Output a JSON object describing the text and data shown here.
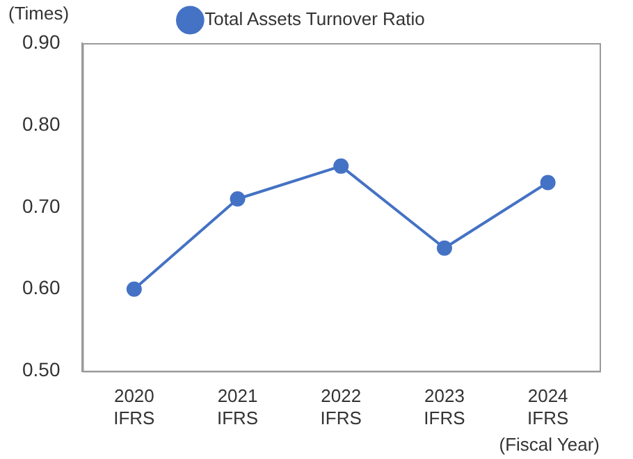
{
  "chart_data": {
    "type": "line",
    "ylabel": "(Times)",
    "xlabel": "(Fiscal Year)",
    "categories": [
      "2020\nIFRS",
      "2021\nIFRS",
      "2022\nIFRS",
      "2023\nIFRS",
      "2024\nIFRS"
    ],
    "series": [
      {
        "name": "Total Assets Turnover Ratio",
        "color": "#4472c4",
        "values": [
          0.6,
          0.71,
          0.75,
          0.65,
          0.73
        ]
      }
    ],
    "ylim": [
      0.5,
      0.9
    ],
    "yticks": [
      {
        "value": 0.5,
        "label": "0.50"
      },
      {
        "value": 0.6,
        "label": "0.60"
      },
      {
        "value": 0.7,
        "label": "0.70"
      },
      {
        "value": 0.8,
        "label": "0.80"
      },
      {
        "value": 0.9,
        "label": "0.90"
      }
    ],
    "grid": false,
    "legend": "top",
    "marker": "circle",
    "line_style": "solid"
  }
}
